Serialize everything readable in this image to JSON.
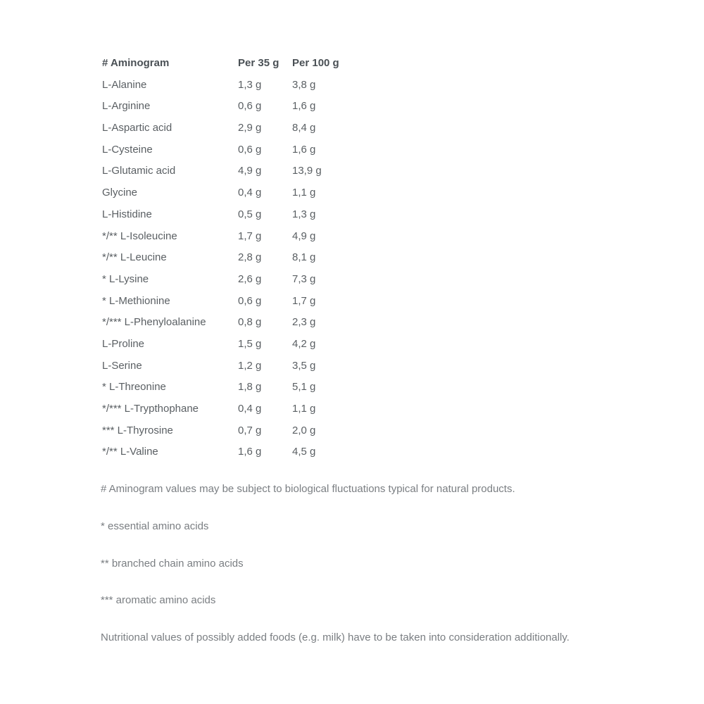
{
  "table": {
    "headers": [
      "# Aminogram",
      "Per 35 g",
      "Per 100 g"
    ],
    "rows": [
      [
        "L-Alanine",
        "1,3 g",
        "3,8 g"
      ],
      [
        "L-Arginine",
        "0,6 g",
        "1,6 g"
      ],
      [
        "L-Aspartic acid",
        "2,9 g",
        "8,4 g"
      ],
      [
        "L-Cysteine",
        "0,6 g",
        "1,6 g"
      ],
      [
        "L-Glutamic acid",
        "4,9 g",
        "13,9 g"
      ],
      [
        "Glycine",
        "0,4 g",
        "1,1 g"
      ],
      [
        "L-Histidine",
        "0,5 g",
        "1,3 g"
      ],
      [
        "*/** L-Isoleucine",
        "1,7 g",
        "4,9 g"
      ],
      [
        "*/** L-Leucine",
        "2,8 g",
        "8,1 g"
      ],
      [
        "* L-Lysine",
        "2,6 g",
        "7,3 g"
      ],
      [
        "* L-Methionine",
        "0,6 g",
        "1,7 g"
      ],
      [
        "*/*** L-Phenyloalanine",
        "0,8 g",
        "2,3 g"
      ],
      [
        "L-Proline",
        "1,5 g",
        "4,2 g"
      ],
      [
        "L-Serine",
        "1,2 g",
        "3,5 g"
      ],
      [
        "* L-Threonine",
        "1,8 g",
        "5,1 g"
      ],
      [
        "*/*** L-Trypthophane",
        "0,4 g",
        "1,1 g"
      ],
      [
        "*** L-Thyrosine",
        "0,7 g",
        "2,0 g"
      ],
      [
        "*/** L-Valine",
        "1,6 g",
        "4,5 g"
      ]
    ]
  },
  "notes": [
    "# Aminogram values may be subject to biological fluctuations typical for natural products.",
    "* essential amino acids",
    "** branched chain amino acids",
    "*** aromatic amino acids",
    "Nutritional values of possibly added foods (e.g. milk) have to be taken into consideration additionally."
  ]
}
